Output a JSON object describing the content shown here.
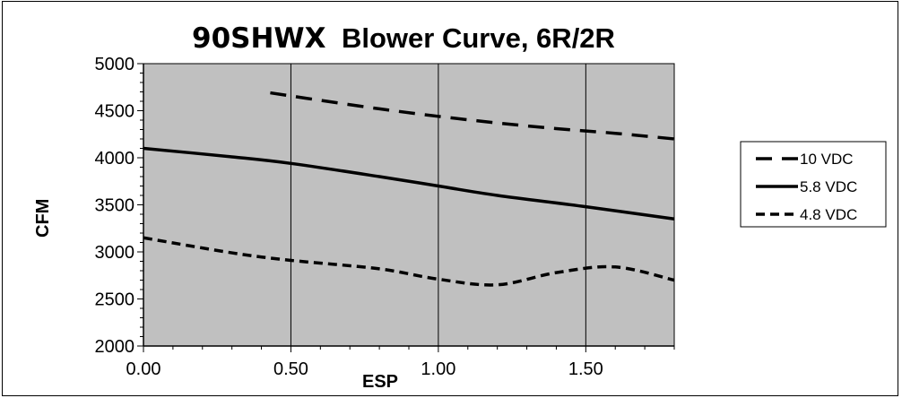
{
  "chart_data": {
    "type": "line",
    "title_part1": "90SHWX",
    "title_part2": "Blower Curve, 6R/2R",
    "xlabel": "ESP",
    "ylabel": "CFM",
    "xlim": [
      0,
      1.8
    ],
    "ylim": [
      2000,
      5000
    ],
    "xticks": [
      "0.00",
      "0.50",
      "1.00",
      "1.50"
    ],
    "xtick_values": [
      0,
      0.5,
      1.0,
      1.5
    ],
    "yticks": [
      "2000",
      "2500",
      "3000",
      "3500",
      "4000",
      "4500",
      "5000"
    ],
    "ytick_values": [
      2000,
      2500,
      3000,
      3500,
      4000,
      4500,
      5000
    ],
    "grid": "vertical",
    "plot_background": "#c0c0c0",
    "legend_position": "right",
    "series": [
      {
        "name": "10 VDC",
        "style": "long-dash",
        "x": [
          0.43,
          0.6,
          0.8,
          1.0,
          1.2,
          1.4,
          1.6,
          1.8
        ],
        "y": [
          4690,
          4610,
          4520,
          4440,
          4370,
          4310,
          4260,
          4200
        ]
      },
      {
        "name": "5.8 VDC",
        "style": "solid",
        "x": [
          0.0,
          0.3,
          0.5,
          0.8,
          1.0,
          1.2,
          1.5,
          1.8
        ],
        "y": [
          4100,
          4010,
          3940,
          3800,
          3700,
          3600,
          3480,
          3350
        ]
      },
      {
        "name": "4.8 VDC",
        "style": "short-dash",
        "x": [
          0.0,
          0.3,
          0.5,
          0.8,
          1.0,
          1.2,
          1.4,
          1.6,
          1.8
        ],
        "y": [
          3150,
          2990,
          2910,
          2820,
          2710,
          2650,
          2780,
          2840,
          2700
        ]
      }
    ]
  }
}
